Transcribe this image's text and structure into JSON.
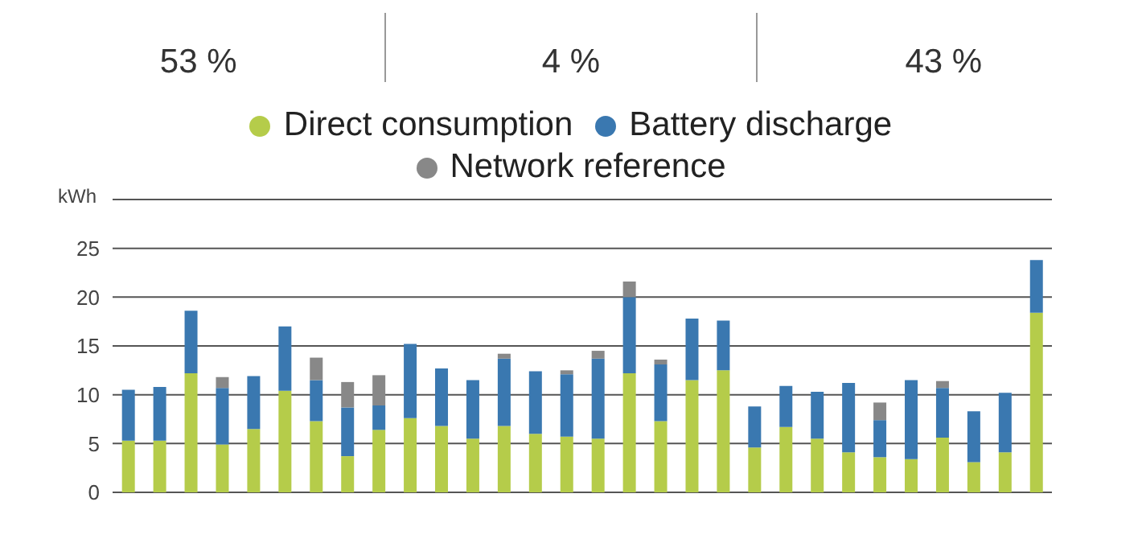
{
  "chart_data": {
    "type": "bar",
    "stacked": true,
    "annotations": [
      "53 %",
      "4 %",
      "43 %"
    ],
    "ylabel": "kWh",
    "categories": [
      null,
      null,
      null,
      null,
      null,
      null,
      null,
      null,
      null,
      null,
      null,
      null,
      null,
      null,
      null,
      null,
      null,
      null,
      null,
      null,
      null,
      null,
      null,
      null,
      null,
      null,
      null,
      null,
      null,
      null
    ],
    "series": [
      {
        "name": "Direct consumption",
        "color": "#b5cc4a",
        "values": [
          5.3,
          5.3,
          12.2,
          4.9,
          6.5,
          10.4,
          7.3,
          3.7,
          6.4,
          7.6,
          6.8,
          5.5,
          6.8,
          6.0,
          5.7,
          5.5,
          12.2,
          7.3,
          11.5,
          12.5,
          4.6,
          6.7,
          5.5,
          4.1,
          3.6,
          3.4,
          5.6,
          3.1,
          4.1,
          18.4
        ]
      },
      {
        "name": "Battery discharge",
        "color": "#3a78b0",
        "values": [
          5.2,
          5.5,
          6.4,
          5.8,
          5.4,
          6.6,
          4.2,
          5.0,
          2.5,
          7.6,
          5.9,
          6.0,
          6.9,
          6.4,
          6.4,
          8.2,
          7.8,
          5.8,
          6.3,
          5.1,
          4.2,
          4.2,
          4.8,
          7.1,
          3.8,
          8.1,
          5.1,
          5.2,
          6.1,
          5.4
        ]
      },
      {
        "name": "Network reference",
        "color": "#888888",
        "values": [
          null,
          null,
          null,
          1.1,
          null,
          null,
          2.3,
          2.6,
          3.1,
          null,
          null,
          null,
          0.5,
          null,
          0.4,
          0.8,
          1.6,
          0.5,
          null,
          null,
          null,
          null,
          null,
          null,
          1.8,
          null,
          0.7,
          null,
          null,
          null
        ]
      }
    ],
    "ylim": [
      0,
      30
    ],
    "yticks": [
      0,
      5,
      10,
      15,
      20,
      25,
      {
        "value": 30,
        "label": null
      }
    ],
    "grid": "y",
    "legend": "top",
    "tick_labels": "y"
  }
}
